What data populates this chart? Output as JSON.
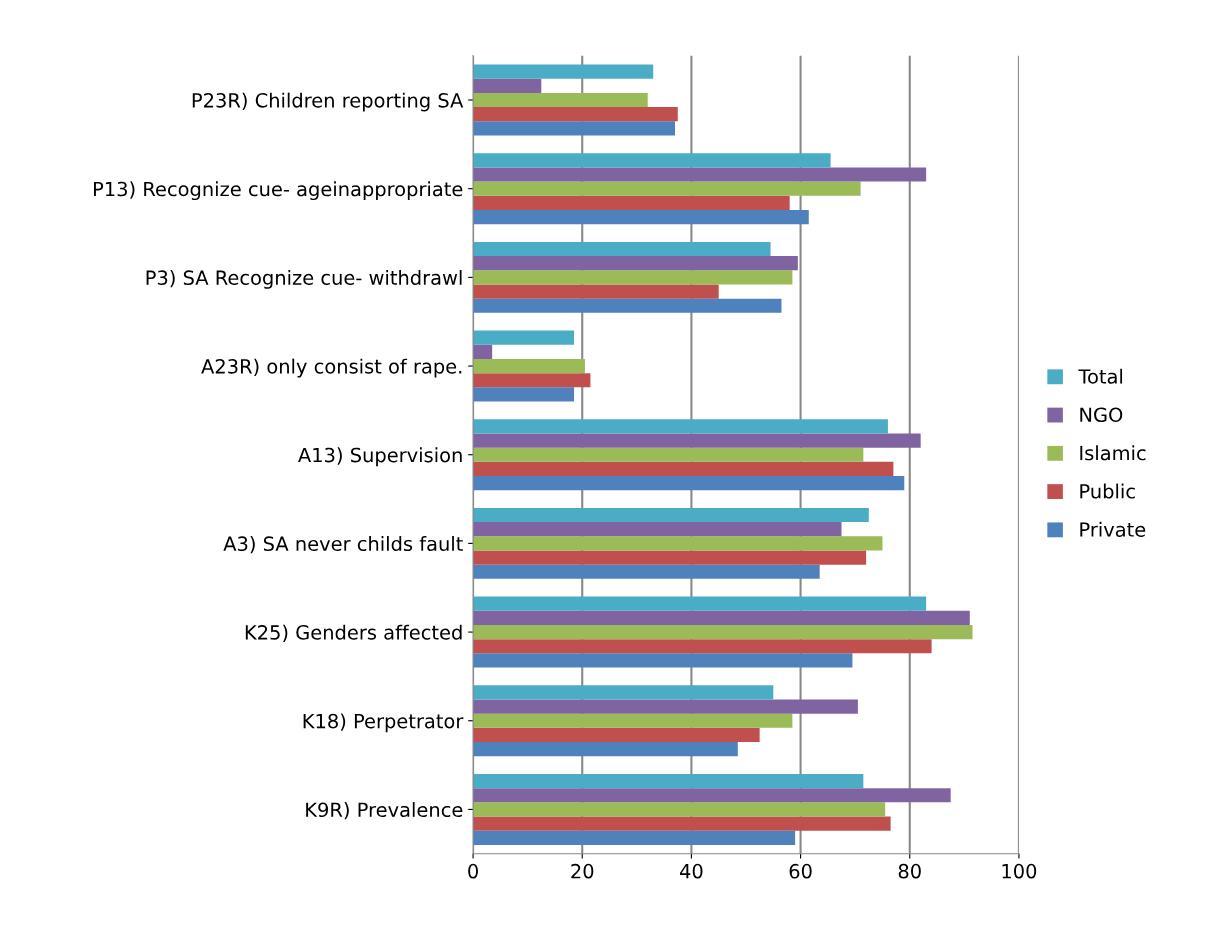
{
  "chart_data": {
    "type": "bar",
    "orientation": "horizontal",
    "categories": [
      "P23R) Children reporting SA",
      "P13) Recognize cue- ageinappropriate",
      "P3) SA Recognize cue- withdrawl",
      "A23R) only consist of rape.",
      "A13) Supervision",
      "A3) SA never childs fault",
      "K25) Genders affected",
      "K18) Perpetrator",
      "K9R) Prevalence"
    ],
    "series": [
      {
        "name": "Private",
        "color": "#4f81bd",
        "values": [
          37,
          61.5,
          56.5,
          18.5,
          79,
          63.5,
          69.5,
          48.5,
          59
        ]
      },
      {
        "name": "Public",
        "color": "#c0504d",
        "values": [
          37.5,
          58,
          45,
          21.5,
          77,
          72,
          84,
          52.5,
          76.5
        ]
      },
      {
        "name": "Islamic",
        "color": "#9bbb59",
        "values": [
          32,
          71,
          58.5,
          20.5,
          71.5,
          75,
          91.5,
          58.5,
          75.5
        ]
      },
      {
        "name": "NGO",
        "color": "#8064a2",
        "values": [
          12.5,
          83,
          59.5,
          3.5,
          82,
          67.5,
          91,
          70.5,
          87.5
        ]
      },
      {
        "name": "Total",
        "color": "#4bacc6",
        "values": [
          33,
          65.5,
          54.5,
          18.5,
          76,
          72.5,
          83,
          55,
          71.5
        ]
      }
    ],
    "xlim": [
      0,
      100
    ],
    "xticks": [
      0,
      20,
      40,
      60,
      80,
      100
    ],
    "grid": "x",
    "legend": "right"
  }
}
